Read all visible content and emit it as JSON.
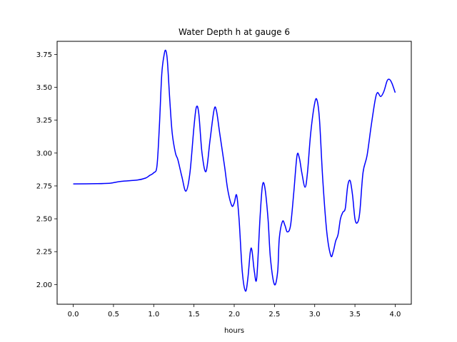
{
  "chart_data": {
    "type": "line",
    "title": "Water Depth h at gauge 6",
    "xlabel": "hours",
    "ylabel": "",
    "xlim": [
      -0.2,
      4.2
    ],
    "ylim": [
      1.85,
      3.85
    ],
    "xticks": [
      0.0,
      0.5,
      1.0,
      1.5,
      2.0,
      2.5,
      3.0,
      3.5,
      4.0
    ],
    "xtick_labels": [
      "0.0",
      "0.5",
      "1.0",
      "1.5",
      "2.0",
      "2.5",
      "3.0",
      "3.5",
      "4.0"
    ],
    "yticks": [
      2.0,
      2.25,
      2.5,
      2.75,
      3.0,
      3.25,
      3.5,
      3.75
    ],
    "ytick_labels": [
      "2.00",
      "2.25",
      "2.50",
      "2.75",
      "3.00",
      "3.25",
      "3.50",
      "3.75"
    ],
    "grid": false,
    "series": [
      {
        "color": "#0000ff",
        "x": [
          0.0,
          0.3,
          0.45,
          0.5,
          0.6,
          0.8,
          0.9,
          0.95,
          1.0,
          1.04,
          1.07,
          1.1,
          1.13,
          1.15,
          1.17,
          1.2,
          1.23,
          1.27,
          1.3,
          1.35,
          1.4,
          1.45,
          1.5,
          1.53,
          1.56,
          1.6,
          1.65,
          1.7,
          1.75,
          1.78,
          1.82,
          1.88,
          1.92,
          1.97,
          2.0,
          2.03,
          2.06,
          2.1,
          2.14,
          2.17,
          2.2,
          2.22,
          2.25,
          2.28,
          2.32,
          2.35,
          2.38,
          2.42,
          2.45,
          2.5,
          2.54,
          2.56,
          2.6,
          2.63,
          2.66,
          2.7,
          2.74,
          2.78,
          2.81,
          2.84,
          2.88,
          2.91,
          2.95,
          3.0,
          3.03,
          3.06,
          3.1,
          3.15,
          3.2,
          3.23,
          3.26,
          3.29,
          3.32,
          3.35,
          3.38,
          3.41,
          3.44,
          3.47,
          3.5,
          3.53,
          3.56,
          3.6,
          3.65,
          3.7,
          3.75,
          3.78,
          3.82,
          3.86,
          3.9,
          3.93,
          3.96,
          4.0
        ],
        "y": [
          2.765,
          2.767,
          2.77,
          2.775,
          2.785,
          2.795,
          2.81,
          2.83,
          2.85,
          2.9,
          3.2,
          3.6,
          3.75,
          3.78,
          3.7,
          3.4,
          3.15,
          3.0,
          2.95,
          2.82,
          2.71,
          2.85,
          3.2,
          3.35,
          3.3,
          3.0,
          2.86,
          3.1,
          3.33,
          3.32,
          3.15,
          2.9,
          2.72,
          2.6,
          2.62,
          2.68,
          2.5,
          2.1,
          1.95,
          2.05,
          2.25,
          2.26,
          2.1,
          2.05,
          2.5,
          2.75,
          2.74,
          2.5,
          2.2,
          2.0,
          2.1,
          2.35,
          2.48,
          2.45,
          2.4,
          2.45,
          2.7,
          2.98,
          2.96,
          2.85,
          2.74,
          2.85,
          3.15,
          3.38,
          3.4,
          3.25,
          2.8,
          2.4,
          2.22,
          2.25,
          2.33,
          2.38,
          2.5,
          2.55,
          2.58,
          2.75,
          2.79,
          2.68,
          2.5,
          2.47,
          2.55,
          2.85,
          2.98,
          3.2,
          3.4,
          3.46,
          3.43,
          3.47,
          3.55,
          3.56,
          3.53,
          3.46
        ]
      }
    ]
  }
}
